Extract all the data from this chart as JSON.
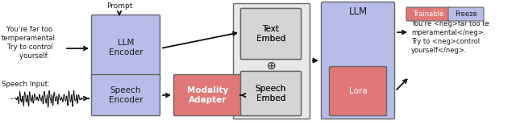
{
  "bg_color": "#ffffff",
  "blue_light": "#b8bce8",
  "red_fill": "#e07878",
  "gray_fill": "#d4d4d4",
  "text_color": "#1a1a1a",
  "border_color": "#666666",
  "figsize": [
    6.4,
    1.5
  ],
  "dpi": 100,
  "prompt_text": "Prompt",
  "input_text_top": "You're far too\ntemperamental.\nTry to control\n    yourself.",
  "speech_input_label": "Speech Input:",
  "output_text": "You're <neg>far too te\nmperamental</neg>.\nTry to <neg>control\nyourself</neg>.",
  "trainable_label": "Trainable",
  "freeze_label": "Freeze",
  "llm_encoder_label": "LLM\nEncoder",
  "speech_encoder_label": "Speech\nEncoder",
  "modality_adapter_label": "Modality\nAdapter",
  "text_embed_label": "Text\nEmbed",
  "speech_embed_label": "Speech\nEmbed",
  "llm_label": "LLM",
  "lora_label": "Lora"
}
